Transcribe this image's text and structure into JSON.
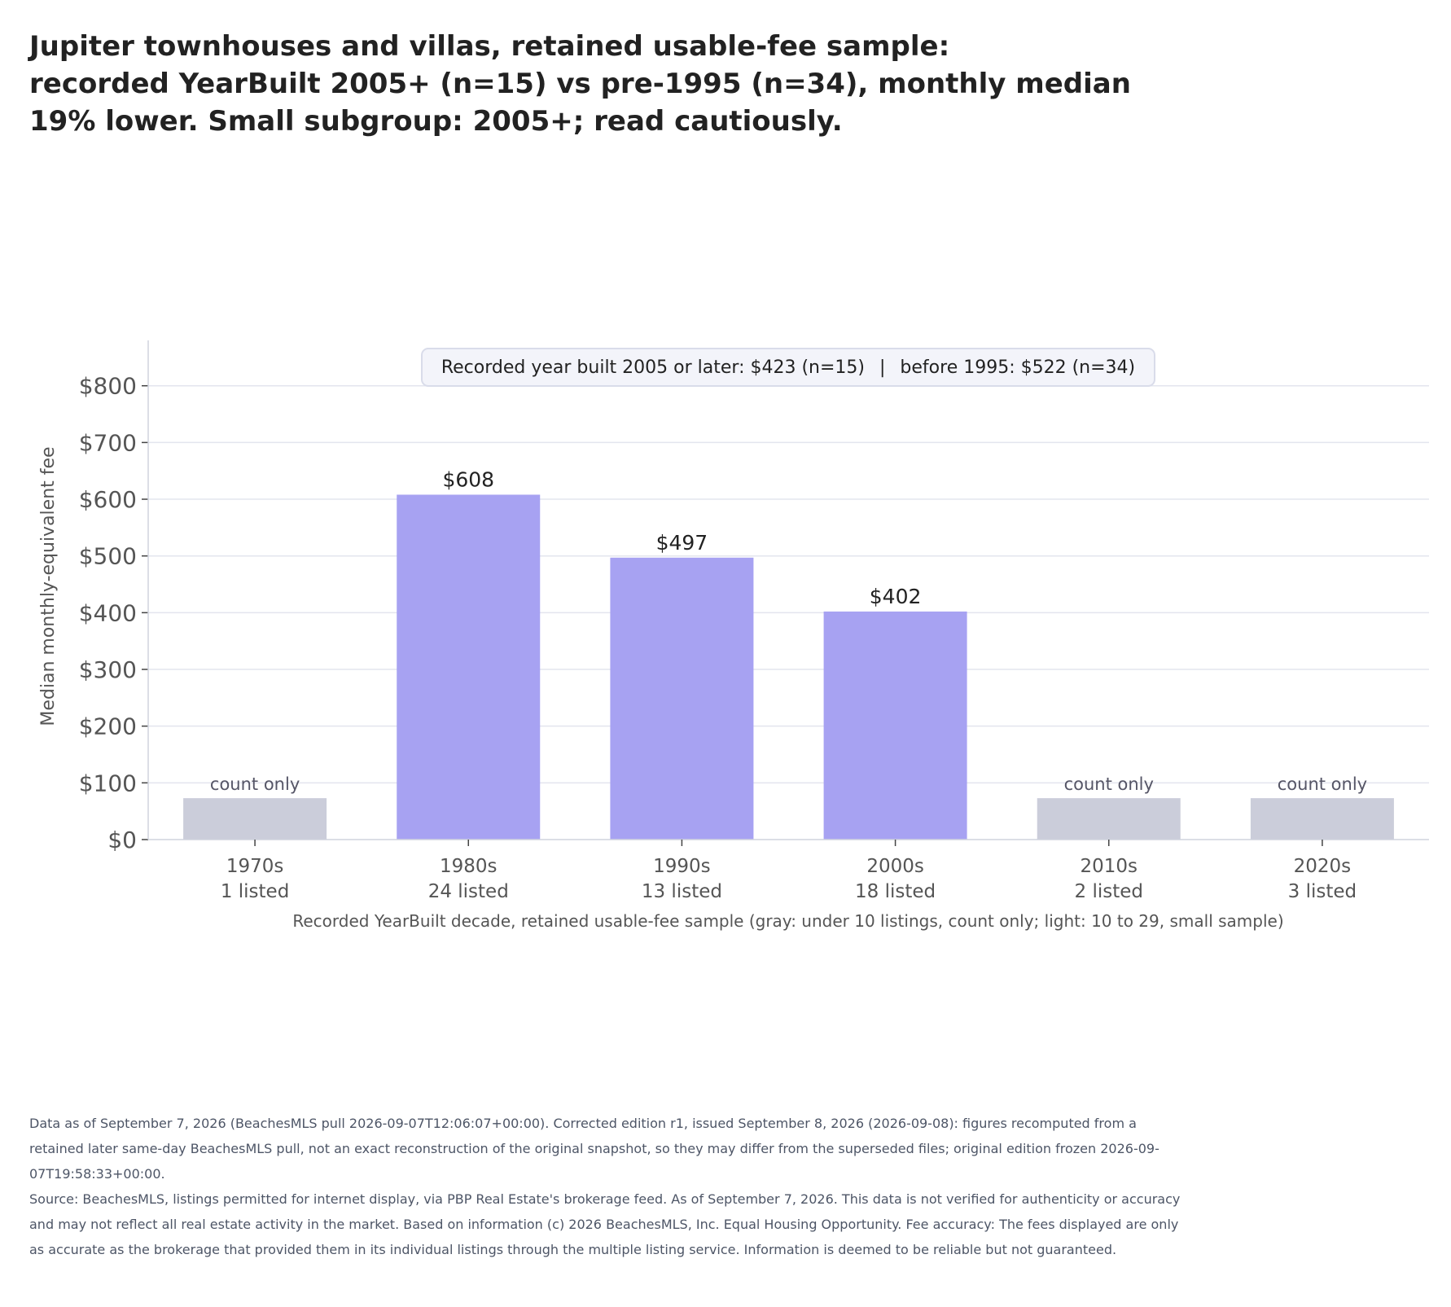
{
  "title": {
    "line1": "Jupiter townhouses and villas, retained usable-fee sample:",
    "line2": "recorded YearBuilt 2005+ (n=15) vs pre-1995 (n=34), monthly median",
    "line3": "19% lower. Small subgroup: 2005+; read cautiously."
  },
  "summary_box": {
    "left": "Recorded year built 2005 or later: $423 (n=15)",
    "separator": "|",
    "right": "before 1995: $522 (n=34)"
  },
  "chart_data": {
    "type": "bar",
    "categories": [
      "1970s",
      "1980s",
      "1990s",
      "2000s",
      "2010s",
      "2020s"
    ],
    "counts": [
      "1 listed",
      "24 listed",
      "13 listed",
      "18 listed",
      "2 listed",
      "3 listed"
    ],
    "values": [
      null,
      608,
      497,
      402,
      null,
      null
    ],
    "value_labels": [
      "count only",
      "$608",
      "$497",
      "$402",
      "count only",
      "count only"
    ],
    "count_only": [
      true,
      false,
      false,
      false,
      true,
      true
    ],
    "count_only_placeholder_value": 73,
    "ylabel": "Median monthly-equivalent fee",
    "xlabel": "Recorded YearBuilt decade, retained usable-fee sample (gray: under 10 listings, count only; light: 10 to 29, small sample)",
    "ylim": [
      0,
      880
    ],
    "yticks": [
      0,
      100,
      200,
      300,
      400,
      500,
      600,
      700,
      800
    ],
    "ytick_labels": [
      "$0",
      "$100",
      "$200",
      "$300",
      "$400",
      "$500",
      "$600",
      "$700",
      "$800"
    ],
    "grid": true,
    "colors": {
      "bar": "#a7a2f2",
      "count_only_bar": "#cbcdda",
      "grid": "#e3e5ee",
      "axis": "#d0d3de",
      "tick_text": "#555555",
      "box_fill": "#f3f4fa",
      "box_border": "#d9dcea"
    }
  },
  "footnote": {
    "edition": "Data as of September 7, 2026 (BeachesMLS pull 2026-09-07T12:06:07+00:00). Corrected edition r1, issued September 8, 2026 (2026-09-08): figures recomputed from a retained later same-day BeachesMLS pull, not an exact reconstruction of the original snapshot, so they may differ from the superseded files; original edition frozen 2026-09-07T19:58:33+00:00.",
    "source": "Source: BeachesMLS, listings permitted for internet display, via PBP Real Estate's brokerage feed. As of September 7, 2026. This data is not verified for authenticity or accuracy and may not reflect all real estate activity in the market. Based on information (c) 2026 BeachesMLS, Inc. Equal Housing Opportunity. Fee accuracy: The fees displayed are only as accurate as the brokerage that provided them in its individual listings through the multiple listing service. Information is deemed to be reliable but not guaranteed."
  }
}
